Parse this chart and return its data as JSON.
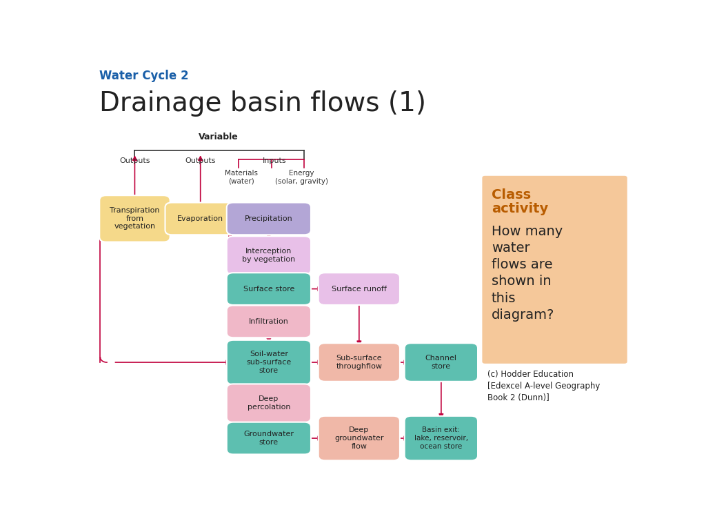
{
  "title_line1": "Water Cycle 2",
  "title_line2": "Drainage basin flows (1)",
  "title_line1_color": "#1a5fa8",
  "title_line2_color": "#222222",
  "background_color": "#ffffff",
  "arrow_color": "#c0003c",
  "line_color": "#333333",
  "class_box": {
    "bg_color": "#f5c89a",
    "title": "Class\nactivity",
    "title_color": "#b85c00",
    "body": "How many\nwater\nflows are\nshown in\nthis\ndiagram?",
    "body_color": "#222222",
    "title_fontsize": 14,
    "body_fontsize": 14
  },
  "citation": "(c) Hodder Education\n[Edexcel A-level Geography\nBook 2 (Dunn)]"
}
